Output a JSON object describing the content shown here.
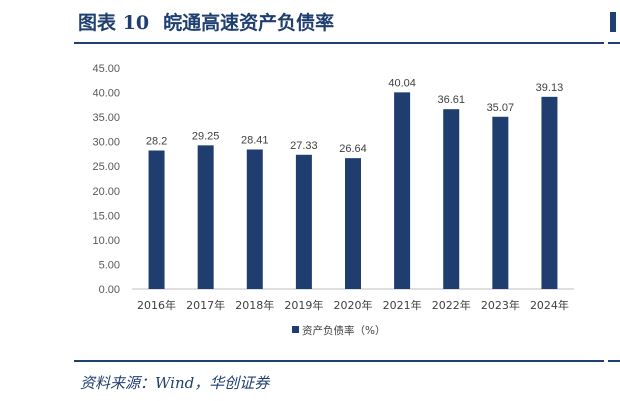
{
  "figure": {
    "number": "图表 10",
    "title": "皖通高速资产负债率"
  },
  "source_note": "资料来源：Wind，华创证券",
  "colors": {
    "bar": "#1f3d6e",
    "accent": "#1f3f70"
  },
  "chart_data": {
    "type": "bar",
    "categories": [
      "2016年",
      "2017年",
      "2018年",
      "2019年",
      "2020年",
      "2021年",
      "2022年",
      "2023年",
      "2024年"
    ],
    "series": [
      {
        "name": "资产负债率（%）",
        "values": [
          28.2,
          29.25,
          28.41,
          27.33,
          26.64,
          40.04,
          36.61,
          35.07,
          39.13
        ],
        "value_labels": [
          "28.2",
          "29.25",
          "28.41",
          "27.33",
          "26.64",
          "40.04",
          "36.61",
          "35.07",
          "39.13"
        ]
      }
    ],
    "yticks": [
      "0.00",
      "5.00",
      "10.00",
      "15.00",
      "20.00",
      "25.00",
      "30.00",
      "35.00",
      "40.00",
      "45.00"
    ],
    "ylim": [
      0,
      45
    ],
    "grid": false,
    "legend_position": "bottom"
  }
}
